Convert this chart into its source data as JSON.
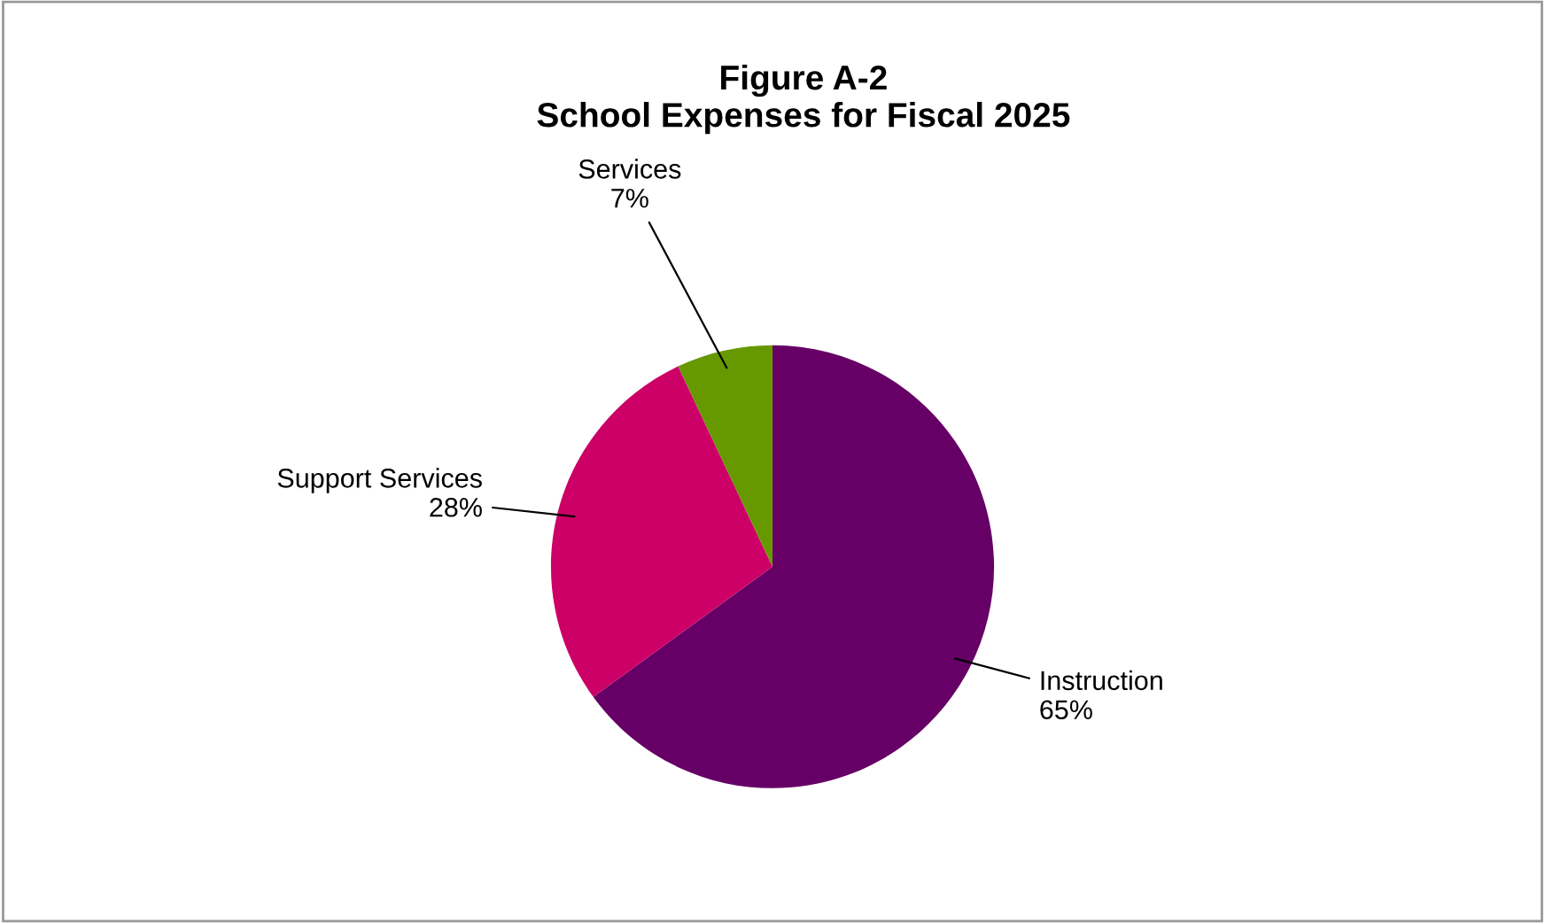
{
  "chart_data": {
    "type": "pie",
    "title": "Figure A-2\nSchool Expenses for Fiscal 2025",
    "categories": [
      "Instruction",
      "Support Services",
      "Services"
    ],
    "values": [
      65,
      28,
      7
    ],
    "value_labels": [
      "65%",
      "28%",
      "7%"
    ],
    "colors": [
      "#660066",
      "#cc0066",
      "#669900"
    ],
    "legend": false
  }
}
